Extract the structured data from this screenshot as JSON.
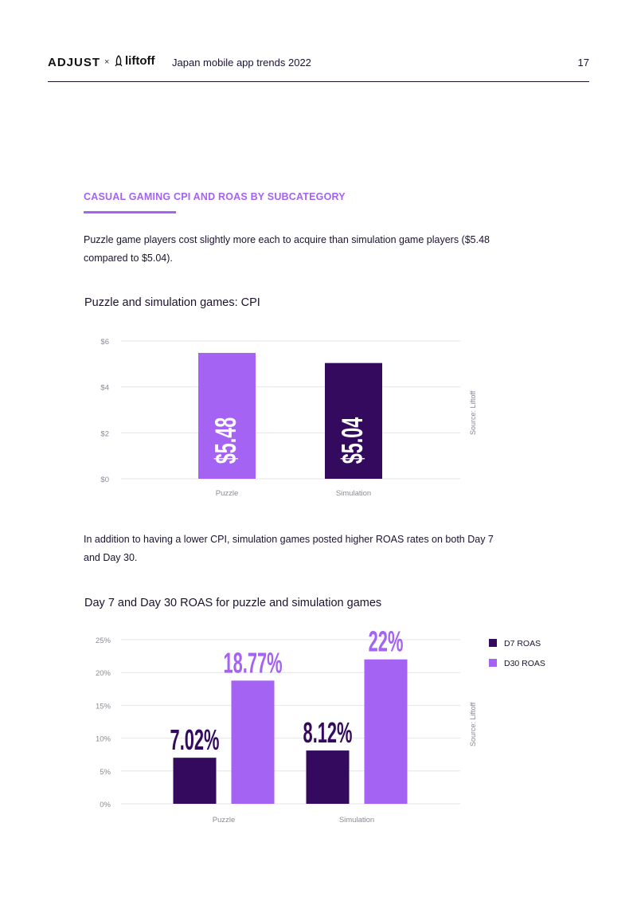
{
  "header": {
    "brand_adjust": "ADJUST",
    "brand_separator": "×",
    "brand_liftoff": "liftoff",
    "doc_title": "Japan mobile app trends 2022",
    "page_number": "17"
  },
  "section": {
    "heading": "CASUAL GAMING CPI AND ROAS BY SUBCATEGORY",
    "paragraph1": "Puzzle game players cost slightly more each to acquire than simulation game players ($5.48 compared to $5.04).",
    "paragraph2": "In addition to having a lower CPI, simulation games posted higher ROAS rates on both Day 7 and Day 30."
  },
  "colors": {
    "light_purple": "#a463f2",
    "dark_purple": "#330a5e",
    "text": "#1c1230",
    "grid": "#e6e6ea",
    "axis_label": "#8a8a96"
  },
  "chart_data": [
    {
      "type": "bar",
      "title": "Puzzle and simulation games: CPI",
      "categories": [
        "Puzzle",
        "Simulation"
      ],
      "values": [
        5.48,
        5.04
      ],
      "value_labels": [
        "$5.48",
        "$5.04"
      ],
      "bar_colors": [
        "#a463f2",
        "#330a5e"
      ],
      "yticks": [
        0,
        2,
        4,
        6
      ],
      "ytick_labels": [
        "$0",
        "$2",
        "$4",
        "$6"
      ],
      "ylim": [
        0,
        6
      ],
      "source": "Source: Liftoff",
      "grid": true
    },
    {
      "type": "bar",
      "title": "Day 7 and Day 30 ROAS for puzzle and simulation games",
      "categories": [
        "Puzzle",
        "Simulation"
      ],
      "series": [
        {
          "name": "D7 ROAS",
          "values": [
            7.02,
            8.12
          ],
          "labels": [
            "7.02%",
            "8.12%"
          ],
          "color": "#330a5e"
        },
        {
          "name": "D30 ROAS",
          "values": [
            18.77,
            22
          ],
          "labels": [
            "18.77%",
            "22%"
          ],
          "color": "#a463f2"
        }
      ],
      "yticks": [
        0,
        5,
        10,
        15,
        20,
        25
      ],
      "ytick_labels": [
        "0%",
        "5%",
        "10%",
        "15%",
        "20%",
        "25%"
      ],
      "ylim": [
        0,
        25
      ],
      "legend_position": "top-right",
      "source": "Source: Liftoff",
      "grid": true
    }
  ]
}
